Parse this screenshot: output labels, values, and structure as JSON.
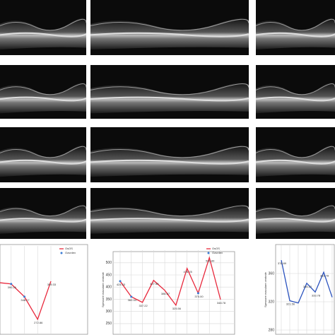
{
  "chart_data": [
    {
      "type": "line",
      "grid": true,
      "categories": [
        null,
        null,
        null,
        null,
        null
      ],
      "ylim": [
        235,
        507
      ],
      "series": [
        {
          "name": "OsOS",
          "color": "#e8283c",
          "values": [
            395,
            390.26,
            348.17,
            272.86,
            399.33
          ],
          "value_labels": [
            null,
            "390.26",
            "348.17",
            "272.86",
            "399.33"
          ]
        },
        {
          "name": "Ozurdex",
          "color": "#3a7bd5",
          "values": [
            null,
            390.26,
            348.17,
            null,
            null
          ]
        }
      ]
    },
    {
      "type": "line",
      "grid": true,
      "y_label": "Spessore maculare centrale",
      "categories": [
        null,
        null,
        null,
        null,
        null,
        null,
        null,
        null,
        null,
        null
      ],
      "ylim": [
        225,
        540
      ],
      "yticks": [
        250,
        300,
        350,
        400,
        450,
        500
      ],
      "series": [
        {
          "name": "OsOS",
          "color": "#e8283c",
          "values": [
            424.33,
            360.44,
            337.22,
            427.56,
            386.67,
            325.56,
            476.78,
            375,
            520.89,
            348.78
          ],
          "value_labels": [
            "424.33",
            "360.44",
            "337.22",
            "427.56",
            "386.67",
            "325.56",
            "476.78",
            "375.00",
            "520.89",
            "348.78"
          ]
        },
        {
          "name": "Ozurdex",
          "color": "#3a7bd5",
          "values": [
            424.33,
            360.44,
            null,
            null,
            null,
            null,
            null,
            375,
            null,
            null
          ]
        }
      ]
    },
    {
      "type": "line",
      "grid": true,
      "y_label": "Spessore maculare centrale",
      "categories": [
        null,
        null,
        null,
        null,
        null,
        null,
        null
      ],
      "ylim": [
        275,
        400
      ],
      "yticks": [
        280,
        320,
        360
      ],
      "series": [
        {
          "color": "#2a52be",
          "values": [
            378.89,
            321.56,
            318.22,
            346.22,
            333.78,
            361.78,
            326.44
          ],
          "value_labels": [
            "378.89",
            "321.56",
            null,
            "346.22",
            "333.78",
            "361.78",
            null
          ]
        }
      ]
    }
  ]
}
